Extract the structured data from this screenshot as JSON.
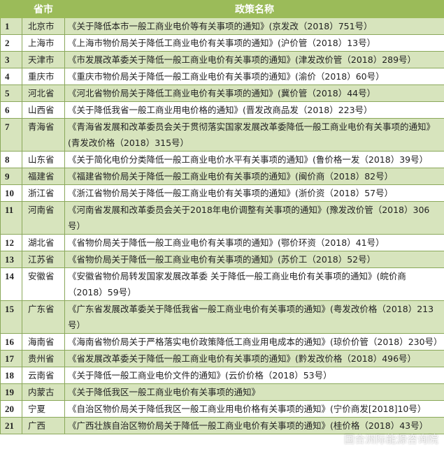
{
  "header": {
    "col_index": "",
    "col_province": "省市",
    "col_policy": "政策名称"
  },
  "colors": {
    "header_bg": "#9bbb59",
    "odd_row_bg": "#d7e4bd",
    "even_row_bg": "#ffffff"
  },
  "rows": [
    {
      "no": "1",
      "province": "北京市",
      "policy": "《关于降低本市一般工商业电价等有关事项的通知》(京发改（2018）751号）"
    },
    {
      "no": "2",
      "province": "上海市",
      "policy": "《上海市物价局关于降低工商业电价有关事项的通知》(沪价管（2018）13号）"
    },
    {
      "no": "3",
      "province": "天津市",
      "policy": "《市发展改革委关于降低一般工商业电价有关事项的通知》(津发改价管（2018）289号）"
    },
    {
      "no": "4",
      "province": "重庆市",
      "policy": "《重庆市物价局关于降低一般工商业电价有关事项的通知》(渝价（2018）60号）"
    },
    {
      "no": "5",
      "province": "河北省",
      "policy": "《河北省物价局关于降低工商业电价有关事项的通知》(冀价管（2018）44号）"
    },
    {
      "no": "6",
      "province": "山西省",
      "policy": "《关于降低我省一般工商业用电价格的通知》(晋发改商品发（2018）223号）"
    },
    {
      "no": "7",
      "province": "青海省",
      "policy": "《青海省发展和改革委员会关于贯彻落实国家发展改革委降低一般工商业电价有关事项的通知》(青发改价格（2018）315号）"
    },
    {
      "no": "8",
      "province": "山东省",
      "policy": "《关于简化电价分类降低一般工商业电价水平有关事项的通知》(鲁价格一发（2018）39号）"
    },
    {
      "no": "9",
      "province": "福建省",
      "policy": "《福建省物价局关于降低一般工商业电价有关事项的通知》(闽价商（2018）82号）"
    },
    {
      "no": "10",
      "province": "浙江省",
      "policy": "《浙江省物价局关于降低一般工商业电价有关事项的通知》(浙价资（2018）57号）"
    },
    {
      "no": "11",
      "province": "河南省",
      "policy": "《河南省发展和改革委员会关于2018年电价调整有关事项的通知》(豫发改价管（2018）306号）"
    },
    {
      "no": "12",
      "province": "湖北省",
      "policy": "《省物价局关于降低一般工商业电价有关事项的通知》(鄂价环资（2018）41号）"
    },
    {
      "no": "13",
      "province": "江苏省",
      "policy": "《省物价局关于降低一般工商业电价有关事项的通知》(苏价工（2018）52号）"
    },
    {
      "no": "14",
      "province": "安徽省",
      "policy": "《安徽省物价局转发国家发展改革委 关于降低一般工商业电价有关事项的通知》(皖价商（2018）59号）"
    },
    {
      "no": "15",
      "province": "广东省",
      "policy": "《广东省发展改革委关于降低我省一般工商业电价有关事项的通知》(粤发改价格（2018）213号）"
    },
    {
      "no": "16",
      "province": "海南省",
      "policy": "《海南省物价局关于严格落实电价政策降低工商业用电成本的通知》(琼价价管（2018）230号）"
    },
    {
      "no": "17",
      "province": "贵州省",
      "policy": "《省发展改革委关于降低一般工商业电价有关事项的通知》(黔发改价格（2018）496号）"
    },
    {
      "no": "18",
      "province": "云南省",
      "policy": "《关于降低一般工商业电价文件的通知》(云价价格（2018）53号）"
    },
    {
      "no": "19",
      "province": "内蒙古",
      "policy": "《关于降低我区一般工商业电价有关事项的通知》"
    },
    {
      "no": "20",
      "province": "宁夏",
      "policy": "《自治区物价局关于降低我区一般工商业用电价格有关事项的通知》(宁价商发[2018]10号）"
    },
    {
      "no": "21",
      "province": "广西",
      "policy": "《广西壮族自治区物价局关于降低一般工商业电价有关事项的通知》(桂价格（2018）43号）"
    }
  ],
  "watermark": "国合洲际能源咨询院"
}
